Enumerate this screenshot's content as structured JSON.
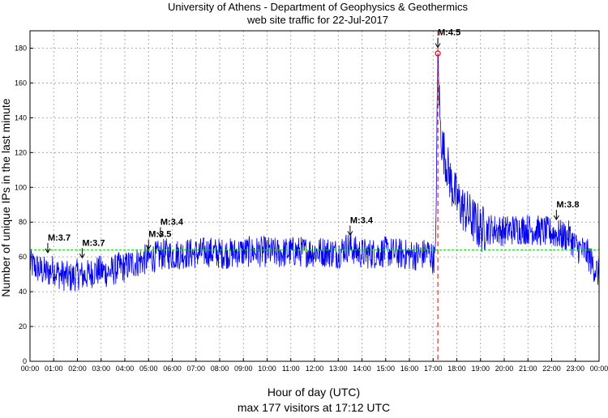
{
  "chart_data": {
    "type": "line",
    "title": "University of Athens - Department of Geophysics & Geothermics",
    "subtitle": "web site traffic for 22-Jul-2017",
    "xlabel": "Hour of day (UTC)",
    "xlabel2": "max 177 visitors at 17:12 UTC",
    "ylabel": "Number of unique IPs in the last minute",
    "xlim": [
      0,
      24
    ],
    "ylim": [
      0,
      190
    ],
    "yticks": [
      0,
      20,
      40,
      60,
      80,
      100,
      120,
      140,
      160,
      180
    ],
    "xtick_labels": [
      "00:00",
      "01:00",
      "02:00",
      "03:00",
      "04:00",
      "05:00",
      "06:00",
      "07:00",
      "08:00",
      "09:00",
      "10:00",
      "11:00",
      "12:00",
      "13:00",
      "14:00",
      "15:00",
      "16:00",
      "17:00",
      "18:00",
      "19:00",
      "20:00",
      "21:00",
      "22:00",
      "23:00",
      "00:00"
    ],
    "grid": true,
    "mean_line": 64,
    "max_value": 177,
    "max_time_hours": 17.2,
    "event_line_hours": 17.2,
    "colors": {
      "series": "#0000ee",
      "mean": "#00dd00",
      "event": "#ee0000",
      "max_marker": "#ee0000"
    },
    "series": [
      {
        "x": [
          0,
          0.25,
          0.5,
          0.75,
          1,
          1.25,
          1.5,
          1.75,
          2,
          2.25,
          2.5,
          2.75,
          3,
          3.25,
          3.5,
          3.75,
          4,
          4.25,
          4.5,
          4.75,
          5,
          5.25,
          5.5,
          5.75,
          6,
          6.5,
          7,
          7.5,
          8,
          8.5,
          9,
          9.5,
          10,
          10.5,
          11,
          11.5,
          12,
          12.5,
          13,
          13.25,
          13.5,
          13.75,
          14,
          14.5,
          15,
          15.5,
          16,
          16.5,
          16.8,
          17,
          17.1,
          17.2,
          17.3,
          17.4,
          17.5,
          17.75,
          18,
          18.25,
          18.5,
          18.75,
          19,
          19.5,
          20,
          20.5,
          21,
          21.5,
          22,
          22.25,
          22.5,
          22.75,
          23,
          23.25,
          23.5,
          23.75,
          24
        ],
        "y": [
          56,
          54,
          52,
          51,
          53,
          50,
          49,
          48,
          50,
          49,
          50,
          52,
          52,
          51,
          52,
          54,
          54,
          56,
          57,
          58,
          59,
          60,
          61,
          62,
          61,
          62,
          62,
          63,
          62,
          62,
          63,
          63,
          63,
          62,
          63,
          63,
          63,
          63,
          62,
          65,
          66,
          63,
          62,
          62,
          63,
          62,
          61,
          61,
          63,
          59,
          60,
          177,
          135,
          123,
          118,
          103,
          93,
          88,
          84,
          80,
          76,
          76,
          75,
          76,
          76,
          75,
          74,
          73,
          72,
          72,
          66,
          64,
          62,
          55,
          50
        ]
      }
    ],
    "annotations": [
      {
        "text": "M:3.7",
        "x": 0.75,
        "y": 62
      },
      {
        "text": "M:3.7",
        "x": 2.2,
        "y": 59
      },
      {
        "text": "M:3.5",
        "x": 5.0,
        "y": 64
      },
      {
        "text": "M:3.4",
        "x": 5.5,
        "y": 71
      },
      {
        "text": "M:3.4",
        "x": 13.5,
        "y": 72
      },
      {
        "text": "M:4.5",
        "x": 17.2,
        "y": 180
      },
      {
        "text": "M:3.8",
        "x": 22.2,
        "y": 81
      }
    ]
  }
}
